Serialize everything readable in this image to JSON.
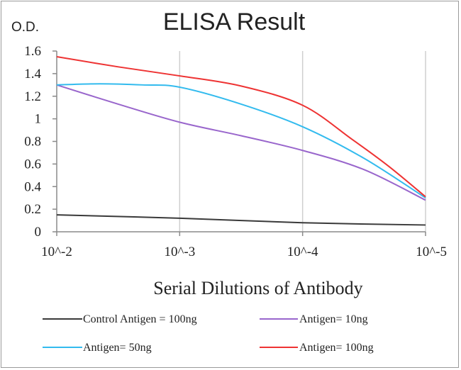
{
  "chart_data": {
    "type": "line",
    "title": "ELISA Result",
    "ylabel": "O.D.",
    "xlabel": "Serial Dilutions of Antibody",
    "categories": [
      "10^-2",
      "10^-3",
      "10^-4",
      "10^-5"
    ],
    "x_scale": "log-dilution",
    "ylim": [
      0,
      1.6
    ],
    "yticks": [
      "0",
      "0.2",
      "0.4",
      "0.6",
      "0.8",
      "1",
      "1.2",
      "1.4",
      "1.6"
    ],
    "grid": "vertical",
    "legend_position": "bottom",
    "series": [
      {
        "name": "Control Antigen = 100ng",
        "color": "#3a3a3a",
        "points": [
          [
            0,
            0.15
          ],
          [
            1,
            0.12
          ],
          [
            2,
            0.08
          ],
          [
            3,
            0.06
          ]
        ]
      },
      {
        "name": "Antigen= 10ng",
        "color": "#9966cc",
        "points": [
          [
            0,
            1.3
          ],
          [
            0.5,
            1.13
          ],
          [
            1,
            0.97
          ],
          [
            1.5,
            0.85
          ],
          [
            2,
            0.72
          ],
          [
            2.5,
            0.55
          ],
          [
            3,
            0.28
          ]
        ]
      },
      {
        "name": "Antigen= 50ng",
        "color": "#33bbee",
        "points": [
          [
            0,
            1.3
          ],
          [
            0.35,
            1.31
          ],
          [
            0.7,
            1.3
          ],
          [
            1,
            1.28
          ],
          [
            1.5,
            1.13
          ],
          [
            2,
            0.93
          ],
          [
            2.5,
            0.65
          ],
          [
            3,
            0.3
          ]
        ]
      },
      {
        "name": "Antigen= 100ng",
        "color": "#ee3333",
        "points": [
          [
            0,
            1.55
          ],
          [
            0.5,
            1.46
          ],
          [
            1,
            1.38
          ],
          [
            1.5,
            1.29
          ],
          [
            2,
            1.12
          ],
          [
            2.4,
            0.82
          ],
          [
            2.7,
            0.58
          ],
          [
            3,
            0.31
          ]
        ]
      }
    ]
  }
}
